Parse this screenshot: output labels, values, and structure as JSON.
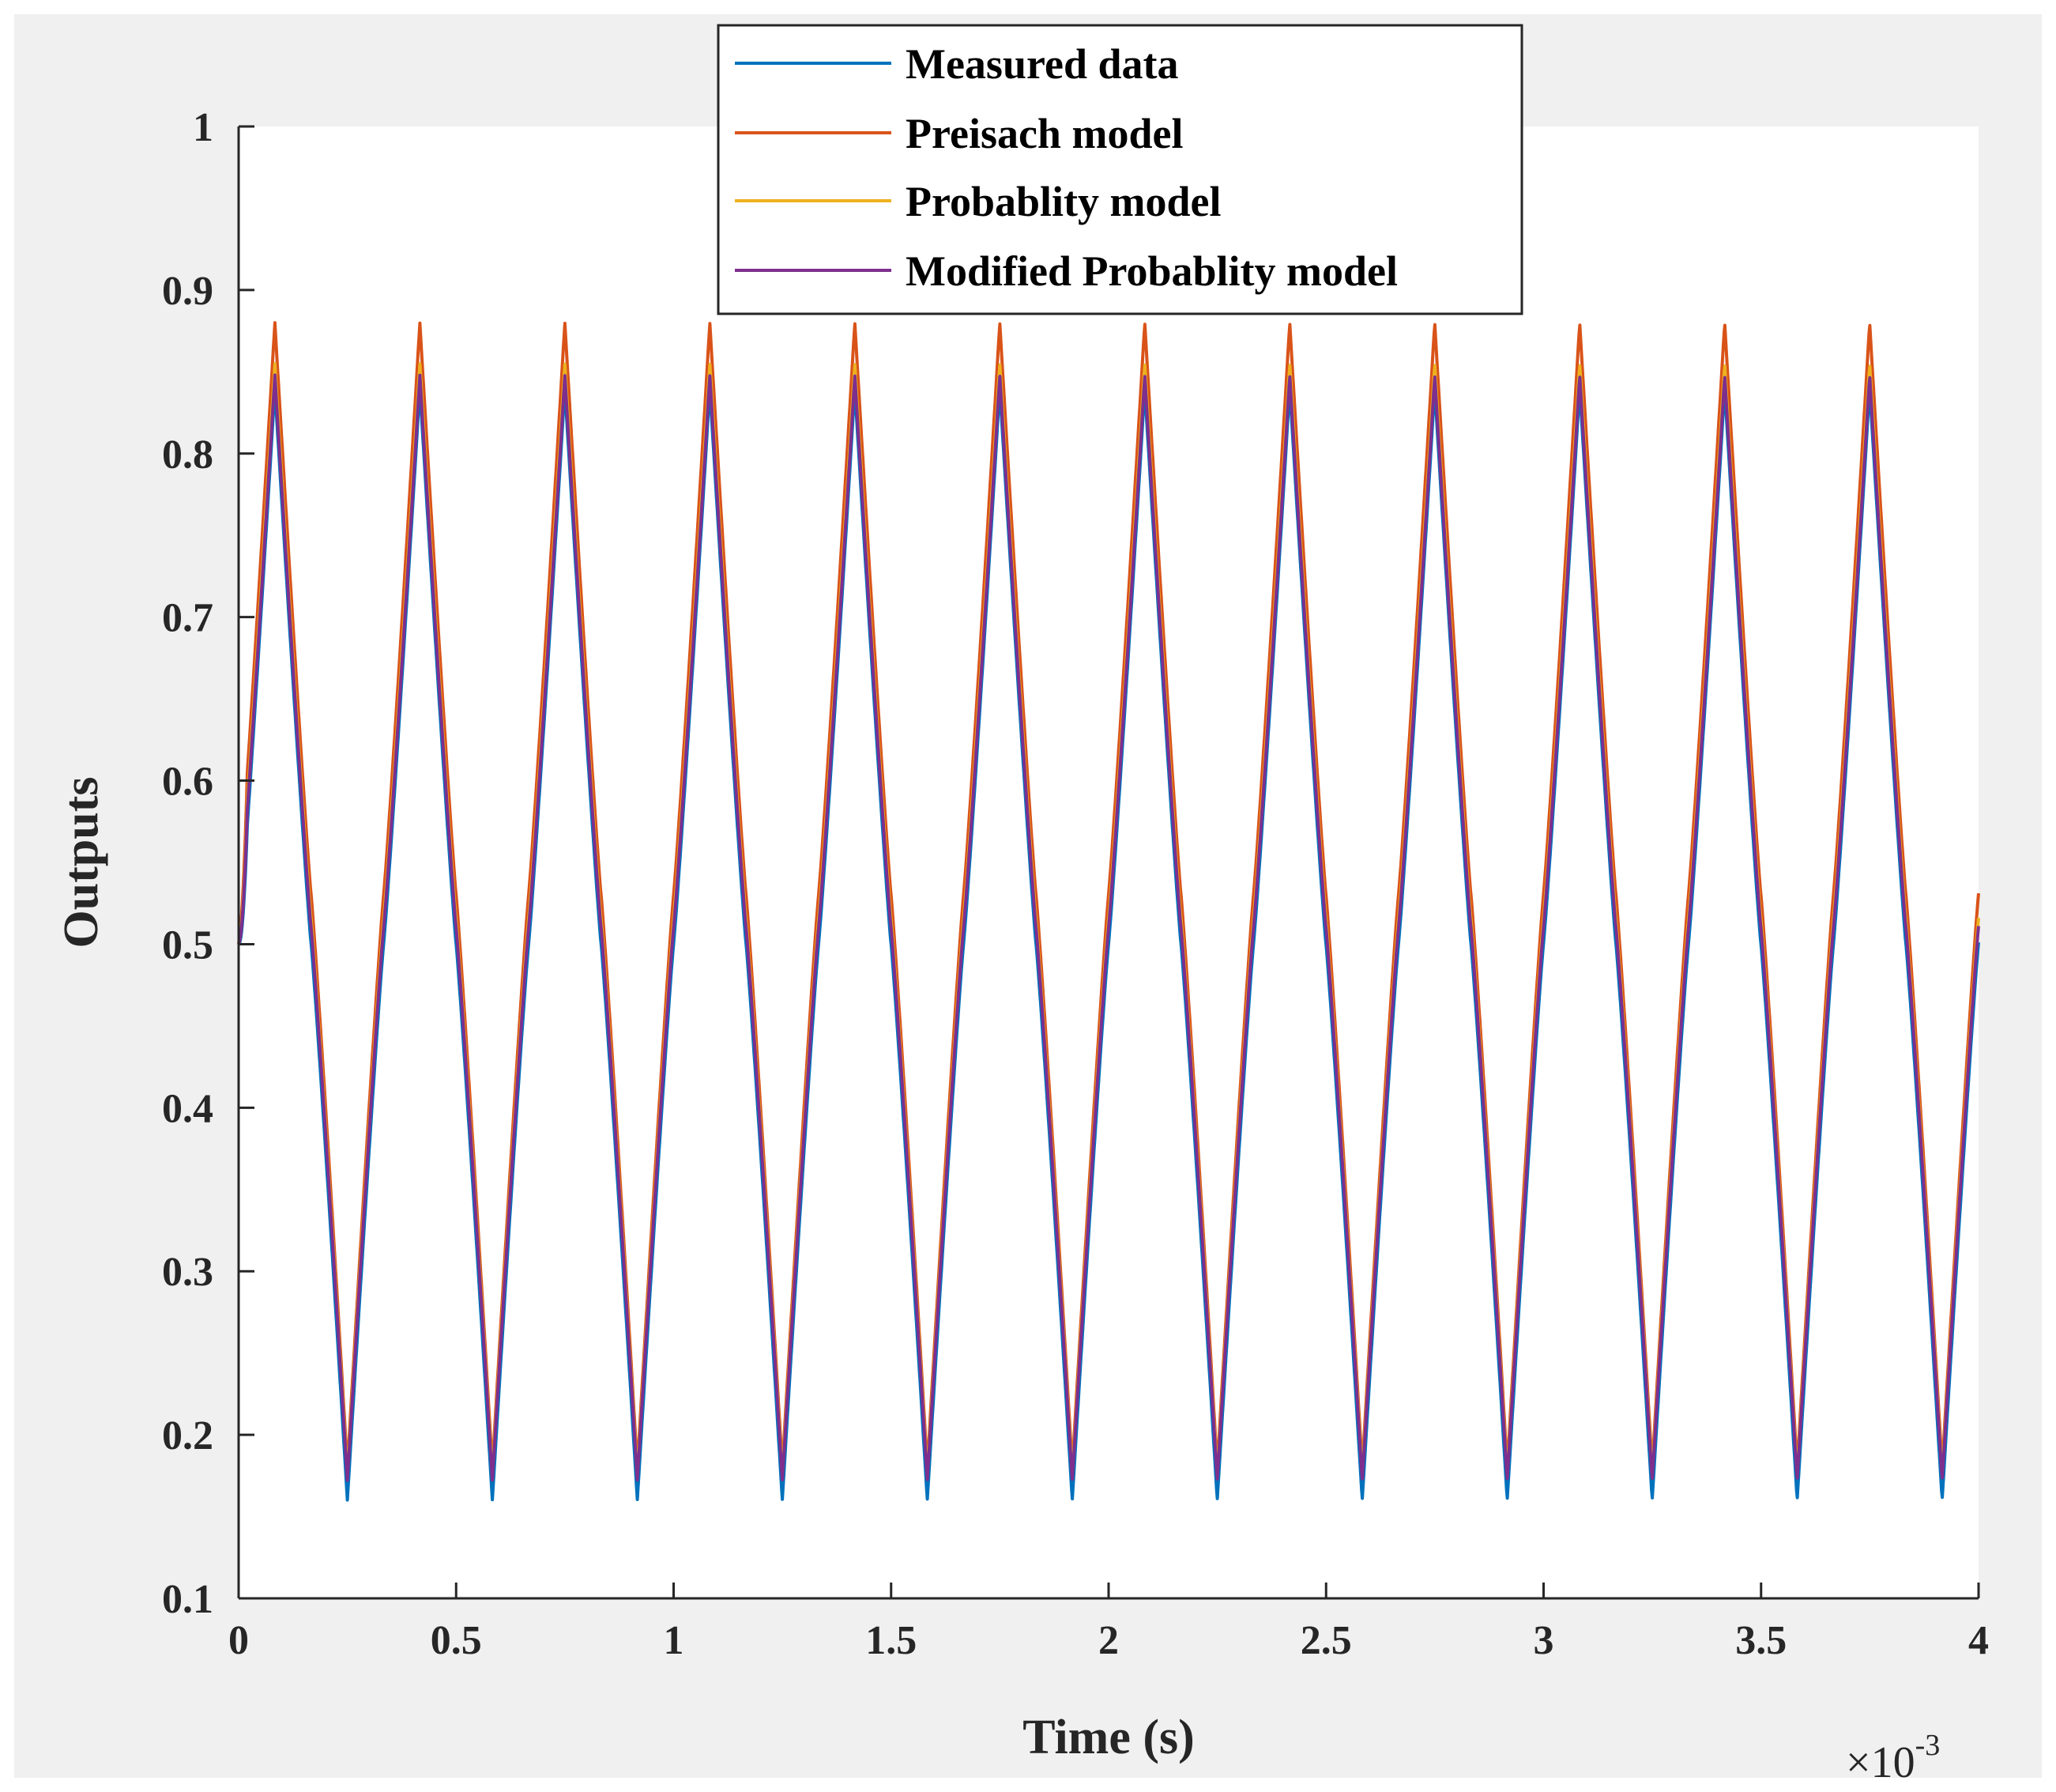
{
  "chart_data": {
    "type": "line",
    "title": "",
    "xlabel": "Time (s)",
    "ylabel": "Outputs",
    "x_exponent": {
      "base": "×10",
      "power": "-3"
    },
    "xlim": [
      0,
      4
    ],
    "ylim": [
      0.1,
      1
    ],
    "x_ticks": [
      0,
      0.5,
      1,
      1.5,
      2,
      2.5,
      3,
      3.5,
      4
    ],
    "x_tick_labels": [
      "0",
      "0.5",
      "1",
      "1.5",
      "2",
      "2.5",
      "3",
      "3.5",
      "4"
    ],
    "y_ticks": [
      0.1,
      0.2,
      0.3,
      0.4,
      0.5,
      0.6,
      0.7,
      0.8,
      0.9,
      1
    ],
    "y_tick_labels": [
      "0.1",
      "0.2",
      "0.3",
      "0.4",
      "0.5",
      "0.6",
      "0.7",
      "0.8",
      "0.9",
      "1"
    ],
    "period": 0.3333,
    "legend_position": "top-center",
    "series": [
      {
        "name": "Measured data",
        "color": "#0072BD",
        "start": 0.5,
        "peak": 0.84,
        "trough": 0.16,
        "end": 0.51
      },
      {
        "name": "Preisach model",
        "color": "#D95319",
        "start": 0.5,
        "peak": 0.88,
        "trough": 0.18,
        "end": 0.545
      },
      {
        "name": "Probablity model",
        "color": "#EDB120",
        "start": 0.5,
        "peak": 0.855,
        "trough": 0.175,
        "end": 0.53
      },
      {
        "name": "Modified Probablity model",
        "color": "#7E2F8E",
        "start": 0.5,
        "peak": 0.848,
        "trough": 0.172,
        "end": 0.52
      }
    ]
  }
}
